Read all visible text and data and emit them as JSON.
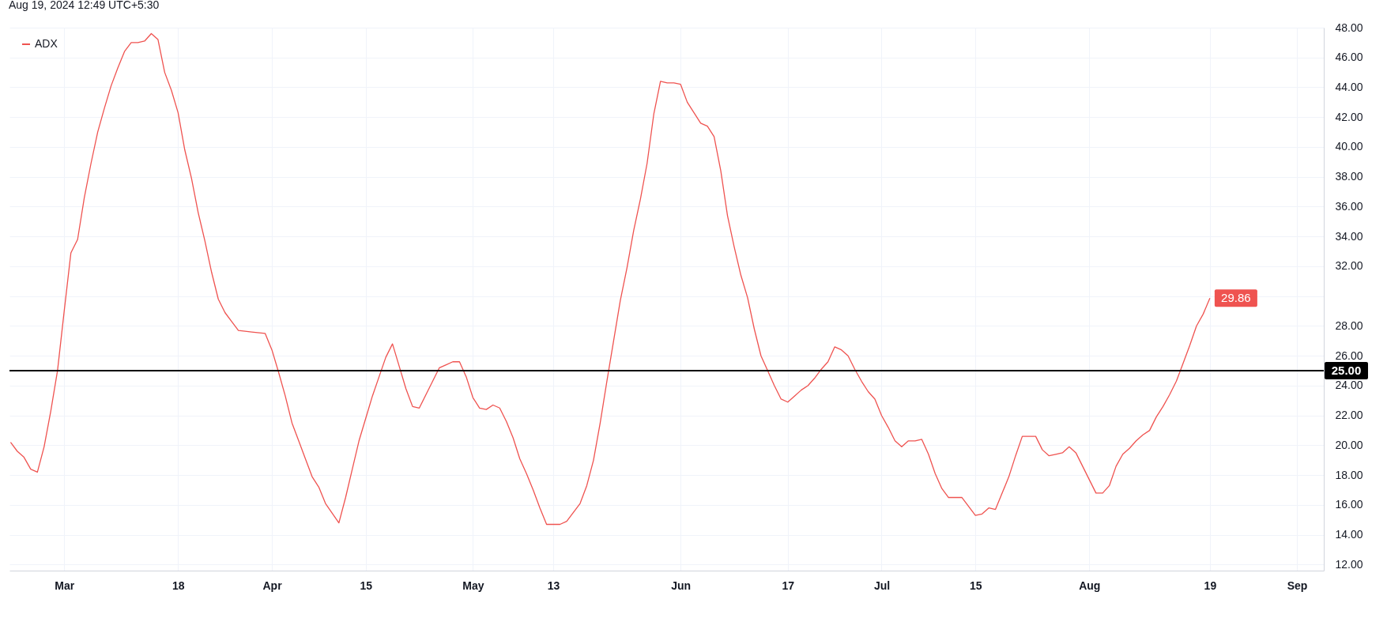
{
  "chart_data": {
    "type": "line",
    "annotations": [
      "Aug 19, 2024 12:49 UTC+5:30"
    ],
    "x": [
      "--02-22",
      "--02-23",
      "--02-24",
      "--02-25",
      "--02-26",
      "--02-27",
      "--02-28",
      "--02-29",
      "--03-01",
      "--03-02",
      "--03-03",
      "--03-04",
      "--03-05",
      "--03-06",
      "--03-07",
      "--03-08",
      "--03-09",
      "--03-10",
      "--03-11",
      "--03-12",
      "--03-13",
      "--03-14",
      "--03-15",
      "--03-16",
      "--03-17",
      "--03-18",
      "--03-19",
      "--03-20",
      "--03-21",
      "--03-22",
      "--03-23",
      "--03-24",
      "--03-25",
      "--03-26",
      "--03-27",
      "--03-29",
      "--03-31",
      "--04-01",
      "--04-02",
      "--04-03",
      "--04-04",
      "--04-05",
      "--04-06",
      "--04-07",
      "--04-08",
      "--04-09",
      "--04-11",
      "--04-12",
      "--04-13",
      "--04-14",
      "--04-15",
      "--04-16",
      "--04-17",
      "--04-18",
      "--04-19",
      "--04-20",
      "--04-21",
      "--04-22",
      "--04-23",
      "--04-24",
      "--04-25",
      "--04-26",
      "--04-27",
      "--04-28",
      "--04-29",
      "--04-30",
      "--05-01",
      "--05-02",
      "--05-03",
      "--05-04",
      "--05-05",
      "--05-06",
      "--05-07",
      "--05-08",
      "--05-09",
      "--05-10",
      "--05-11",
      "--05-12",
      "--05-13",
      "--05-14",
      "--05-15",
      "--05-16",
      "--05-17",
      "--05-18",
      "--05-19",
      "--05-20",
      "--05-21",
      "--05-22",
      "--05-23",
      "--05-24",
      "--05-25",
      "--05-26",
      "--05-27",
      "--05-28",
      "--05-29",
      "--05-30",
      "--05-31",
      "--06-01",
      "--06-02",
      "--06-03",
      "--06-04",
      "--06-05",
      "--06-06",
      "--06-07",
      "--06-08",
      "--06-09",
      "--06-10",
      "--06-11",
      "--06-12",
      "--06-13",
      "--06-14",
      "--06-15",
      "--06-16",
      "--06-17",
      "--06-18",
      "--06-19",
      "--06-20",
      "--06-21",
      "--06-22",
      "--06-23",
      "--06-24",
      "--06-25",
      "--06-26",
      "--06-27",
      "--06-28",
      "--06-29",
      "--06-30",
      "--07-01",
      "--07-02",
      "--07-03",
      "--07-04",
      "--07-05",
      "--07-06",
      "--07-07",
      "--07-08",
      "--07-09",
      "--07-10",
      "--07-11",
      "--07-12",
      "--07-13",
      "--07-14",
      "--07-15",
      "--07-16",
      "--07-17",
      "--07-18",
      "--07-19",
      "--07-20",
      "--07-21",
      "--07-22",
      "--07-23",
      "--07-24",
      "--07-25",
      "--07-26",
      "--07-27",
      "--07-28",
      "--07-29",
      "--07-30",
      "--07-31",
      "--08-01",
      "--08-02",
      "--08-03",
      "--08-04",
      "--08-05",
      "--08-06",
      "--08-07",
      "--08-08",
      "--08-09",
      "--08-10",
      "--08-11",
      "--08-12",
      "--08-13",
      "--08-14",
      "--08-15",
      "--08-16",
      "--08-17",
      "--08-18",
      "--08-19"
    ],
    "series": [
      {
        "name": "ADX",
        "color": "#ef5350",
        "values": [
          20.2,
          19.6,
          19.2,
          18.4,
          18.2,
          19.9,
          22.3,
          25.0,
          29.0,
          32.9,
          33.8,
          36.6,
          38.9,
          41.0,
          42.6,
          44.1,
          45.3,
          46.4,
          47.0,
          47.0,
          47.1,
          47.6,
          47.2,
          45.0,
          43.8,
          42.3,
          39.8,
          37.9,
          35.6,
          33.7,
          31.6,
          29.8,
          28.9,
          28.3,
          27.7,
          27.6,
          27.5,
          26.4,
          24.9,
          23.3,
          21.5,
          20.3,
          19.1,
          17.9,
          17.2,
          16.1,
          14.8,
          16.5,
          18.4,
          20.3,
          21.8,
          23.3,
          24.6,
          25.9,
          26.8,
          25.3,
          23.8,
          22.6,
          22.5,
          23.4,
          24.3,
          25.2,
          25.4,
          25.6,
          25.6,
          24.6,
          23.2,
          22.5,
          22.4,
          22.7,
          22.5,
          21.6,
          20.5,
          19.1,
          18.1,
          17.0,
          15.8,
          14.7,
          14.7,
          14.7,
          14.9,
          15.5,
          16.1,
          17.3,
          19.0,
          21.5,
          24.3,
          27.0,
          29.7,
          31.9,
          34.4,
          36.5,
          38.9,
          42.2,
          44.4,
          44.3,
          44.3,
          44.2,
          43.0,
          42.3,
          41.6,
          41.4,
          40.7,
          38.4,
          35.4,
          33.3,
          31.4,
          29.9,
          27.8,
          26.0,
          25.0,
          24.0,
          23.1,
          22.9,
          23.3,
          23.7,
          24.0,
          24.5,
          25.1,
          25.6,
          26.6,
          26.4,
          26.0,
          25.1,
          24.3,
          23.6,
          23.1,
          22.0,
          21.2,
          20.3,
          19.9,
          20.3,
          20.3,
          20.4,
          19.4,
          18.1,
          17.1,
          16.5,
          16.5,
          16.5,
          15.9,
          15.3,
          15.4,
          15.8,
          15.7,
          16.8,
          17.9,
          19.3,
          20.6,
          20.6,
          20.6,
          19.7,
          19.3,
          19.4,
          19.5,
          19.9,
          19.5,
          18.6,
          17.7,
          16.8,
          16.8,
          17.3,
          18.6,
          19.4,
          19.8,
          20.3,
          20.7,
          21.0,
          21.9,
          22.6,
          23.4,
          24.3,
          25.5,
          26.7,
          28.0,
          28.8,
          29.86
        ],
        "value_labels": [
          null,
          null,
          null,
          null,
          null,
          null,
          null,
          null,
          null,
          null,
          null,
          null,
          null,
          null,
          null,
          null,
          null,
          null,
          null,
          null,
          null,
          null,
          null,
          null,
          null,
          null,
          null,
          null,
          null,
          null,
          null,
          null,
          null,
          null,
          null,
          null,
          null,
          null,
          null,
          null,
          null,
          null,
          null,
          null,
          null,
          null,
          null,
          null,
          null,
          null,
          null,
          null,
          null,
          null,
          null,
          null,
          null,
          null,
          null,
          null,
          null,
          null,
          null,
          null,
          null,
          null,
          null,
          null,
          null,
          null,
          null,
          null,
          null,
          null,
          null,
          null,
          null,
          null,
          null,
          null,
          null,
          null,
          null,
          null,
          null,
          null,
          null,
          null,
          null,
          null,
          null,
          null,
          null,
          null,
          null,
          null,
          null,
          null,
          null,
          null,
          null,
          null,
          null,
          null,
          null,
          null,
          null,
          null,
          null,
          null,
          null,
          null,
          null,
          null,
          null,
          null,
          null,
          null,
          null,
          null,
          null,
          null,
          null,
          null,
          null,
          null,
          null,
          null,
          null,
          null,
          null,
          null,
          null,
          null,
          null,
          null,
          null,
          null,
          null,
          null,
          null,
          null,
          null,
          null,
          null,
          null,
          null,
          null,
          null,
          null,
          null,
          null,
          null,
          null,
          null,
          null,
          null,
          null,
          null,
          null,
          null,
          null,
          null,
          null,
          null,
          null,
          null,
          null,
          null,
          null,
          null,
          null,
          null,
          null,
          null,
          null,
          "29.86"
        ]
      }
    ],
    "xlim": [
      "--02-21T20:00",
      "--09-05"
    ],
    "xticks": [
      {
        "value": "--03-01",
        "label": "Mar"
      },
      {
        "value": "--03-18",
        "label": "18"
      },
      {
        "value": "--04-01",
        "label": "Apr"
      },
      {
        "value": "--04-15",
        "label": "15"
      },
      {
        "value": "--05-01",
        "label": "May"
      },
      {
        "value": "--05-13",
        "label": "13"
      },
      {
        "value": "--06-01",
        "label": "Jun"
      },
      {
        "value": "--06-17",
        "label": "17"
      },
      {
        "value": "--07-01",
        "label": "Jul"
      },
      {
        "value": "--07-15",
        "label": "15"
      },
      {
        "value": "--08-01",
        "label": "Aug"
      },
      {
        "value": "--08-19",
        "label": "19"
      },
      {
        "value": "--09-01",
        "label": "Sep"
      }
    ],
    "ylim": [
      11.6,
      48
    ],
    "yticks": [
      {
        "value": 12,
        "label": "12.00"
      },
      {
        "value": 14,
        "label": "14.00"
      },
      {
        "value": 16,
        "label": "16.00"
      },
      {
        "value": 18,
        "label": "18.00"
      },
      {
        "value": 20,
        "label": "20.00"
      },
      {
        "value": 22,
        "label": "22.00"
      },
      {
        "value": 24,
        "label": "24.00"
      },
      {
        "value": 26,
        "label": "26.00"
      },
      {
        "value": 28,
        "label": "28.00"
      },
      {
        "value": 30,
        "label": null
      },
      {
        "value": 32,
        "label": "32.00"
      },
      {
        "value": 34,
        "label": "34.00"
      },
      {
        "value": 36,
        "label": "36.00"
      },
      {
        "value": 38,
        "label": "38.00"
      },
      {
        "value": 40,
        "label": "40.00"
      },
      {
        "value": 42,
        "label": "42.00"
      },
      {
        "value": 44,
        "label": "44.00"
      },
      {
        "value": 46,
        "label": "46.00"
      },
      {
        "value": 48,
        "label": "48.00"
      }
    ],
    "grid": true,
    "legend": "top left",
    "ref_lines": [
      {
        "axis": "y",
        "value": 25,
        "label": "25.00",
        "color": "#000000"
      }
    ]
  }
}
